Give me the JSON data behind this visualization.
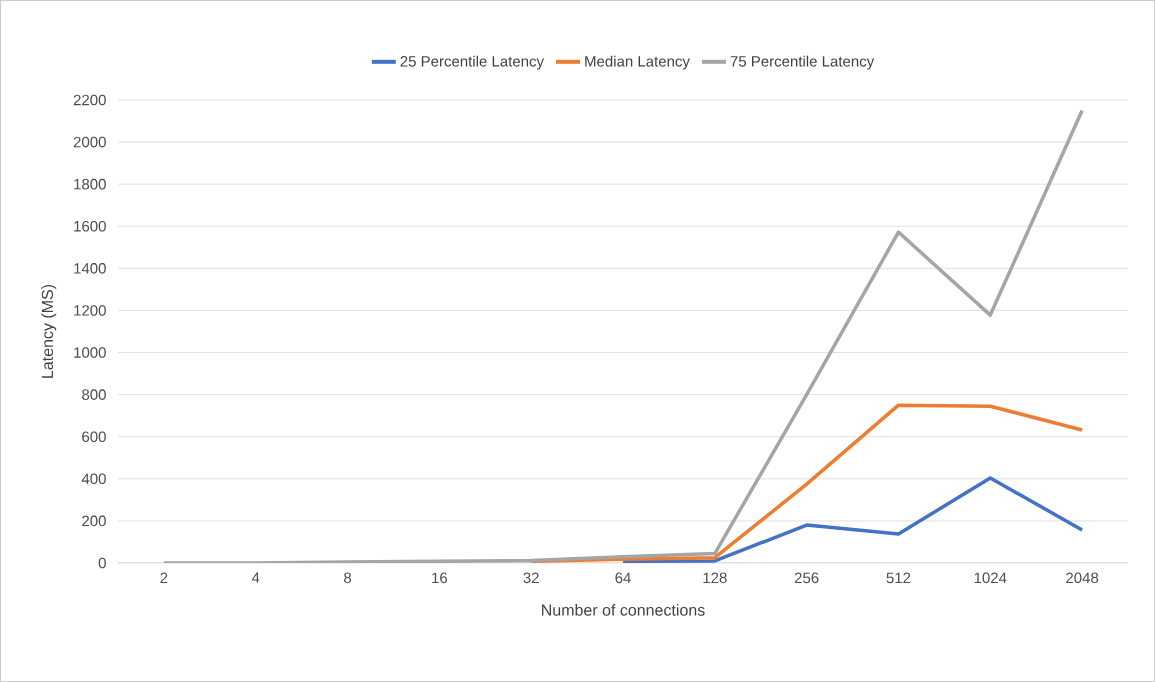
{
  "chart_data": {
    "type": "line",
    "xlabel": "Number of connections",
    "ylabel": "Latency (MS)",
    "categories": [
      "2",
      "4",
      "8",
      "16",
      "32",
      "64",
      "128",
      "256",
      "512",
      "1024",
      "2048"
    ],
    "series": [
      {
        "name": "25 Percentile Latency",
        "color": "#4472c4",
        "values": [
          null,
          null,
          null,
          null,
          null,
          8,
          10,
          180,
          138,
          404,
          157
        ]
      },
      {
        "name": "Median Latency",
        "color": "#ed7d31",
        "values": [
          null,
          null,
          null,
          null,
          8,
          18,
          25,
          375,
          750,
          745,
          632
        ]
      },
      {
        "name": "75 Percentile Latency",
        "color": "#a5a5a5",
        "values": [
          0,
          0,
          5,
          8,
          12,
          30,
          45,
          800,
          1572,
          1178,
          2150
        ]
      }
    ],
    "ylim": [
      0,
      2200
    ],
    "yticks": [
      0,
      200,
      400,
      600,
      800,
      1000,
      1200,
      1400,
      1600,
      1800,
      2000,
      2200
    ],
    "grid": "y",
    "legend": "top",
    "marker": "none",
    "line_style": "solid"
  }
}
